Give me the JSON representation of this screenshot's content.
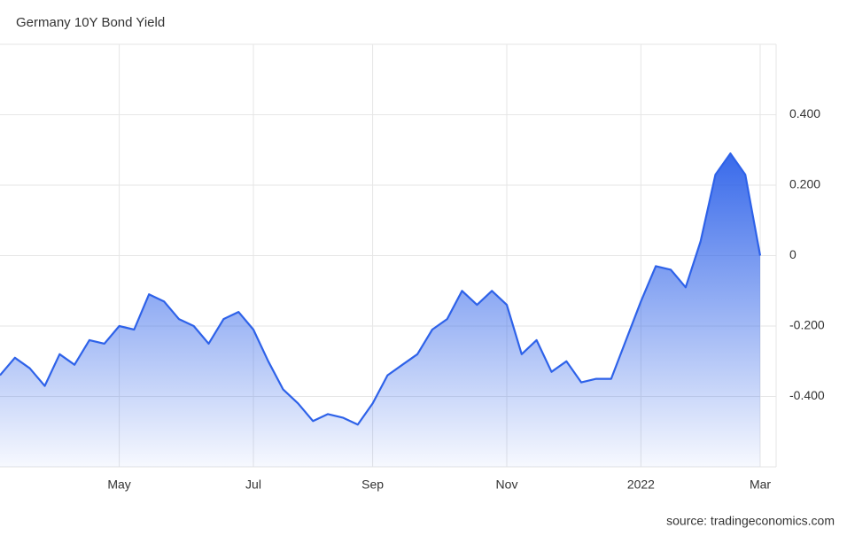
{
  "chart_data": {
    "type": "area",
    "title": "Germany 10Y Bond Yield",
    "source": "source: tradingeconomics.com",
    "categories": [
      null,
      null,
      null,
      null,
      null,
      null,
      null,
      null,
      "May",
      null,
      null,
      null,
      null,
      null,
      null,
      null,
      null,
      "Jul",
      null,
      null,
      null,
      null,
      null,
      null,
      null,
      "Sep",
      null,
      null,
      null,
      null,
      null,
      null,
      null,
      null,
      "Nov",
      null,
      null,
      null,
      null,
      null,
      null,
      null,
      null,
      "2022",
      null,
      null,
      null,
      null,
      null,
      null,
      null,
      "Mar"
    ],
    "values": [
      -0.34,
      -0.29,
      -0.32,
      -0.37,
      -0.28,
      -0.31,
      -0.24,
      -0.25,
      -0.2,
      -0.21,
      -0.11,
      -0.13,
      -0.18,
      -0.2,
      -0.25,
      -0.18,
      -0.16,
      -0.21,
      -0.3,
      -0.38,
      -0.42,
      -0.47,
      -0.45,
      -0.46,
      -0.48,
      -0.42,
      -0.34,
      -0.31,
      -0.28,
      -0.21,
      -0.18,
      -0.1,
      -0.14,
      -0.1,
      -0.14,
      -0.28,
      -0.24,
      -0.33,
      -0.3,
      -0.36,
      -0.35,
      -0.35,
      -0.24,
      -0.13,
      -0.03,
      -0.04,
      -0.09,
      0.04,
      0.23,
      0.29,
      0.23,
      0
    ],
    "color": "#2e62e9",
    "ylim": [
      -0.6,
      0.6
    ],
    "yticks": [
      {
        "value": -0.4,
        "label": "-0.400"
      },
      {
        "value": -0.2,
        "label": "-0.200"
      },
      0,
      {
        "value": 0.2,
        "label": "0.200"
      },
      {
        "value": 0.4,
        "label": "0.400"
      }
    ],
    "grid": true
  }
}
